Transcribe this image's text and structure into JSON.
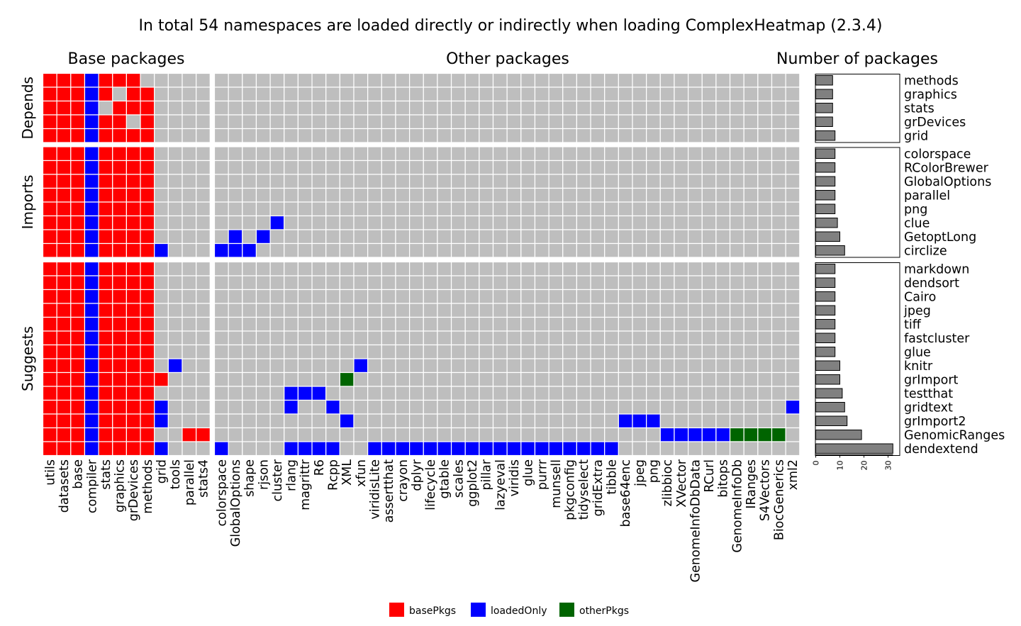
{
  "chart_data": {
    "type": "heatmap",
    "title": "In total 54 namespaces are loaded directly or indirectly when loading ComplexHeatmap (2.3.4)",
    "sections": [
      "Base packages",
      "Other packages",
      "Number of packages"
    ],
    "base_columns": [
      "utils",
      "datasets",
      "base",
      "compiler",
      "stats",
      "graphics",
      "grDevices",
      "methods",
      "grid",
      "tools",
      "parallel",
      "stats4"
    ],
    "other_columns": [
      "colorspace",
      "GlobalOptions",
      "shape",
      "rjson",
      "cluster",
      "rlang",
      "magrittr",
      "R6",
      "Rcpp",
      "XML",
      "xfun",
      "viridisLite",
      "assertthat",
      "crayon",
      "dplyr",
      "lifecycle",
      "gtable",
      "scales",
      "ggplot2",
      "pillar",
      "lazyeval",
      "viridis",
      "glue",
      "purrr",
      "munsell",
      "pkgconfig",
      "tidyselect",
      "gridExtra",
      "tibble",
      "base64enc",
      "jpeg",
      "png",
      "zlibbioc",
      "XVector",
      "GenomeInfoDbData",
      "RCurl",
      "bitops",
      "GenomeInfoDb",
      "IRanges",
      "S4Vectors",
      "BiocGenerics",
      "xml2"
    ],
    "groups": [
      {
        "name": "Depends",
        "rows": [
          "methods",
          "graphics",
          "stats",
          "grDevices",
          "grid"
        ]
      },
      {
        "name": "Imports",
        "rows": [
          "colorspace",
          "RColorBrewer",
          "GlobalOptions",
          "parallel",
          "png",
          "clue",
          "GetoptLong",
          "circlize"
        ]
      },
      {
        "name": "Suggests",
        "rows": [
          "markdown",
          "dendsort",
          "Cairo",
          "jpeg",
          "tiff",
          "fastcluster",
          "glue",
          "knitr",
          "grImport",
          "testthat",
          "gridtext",
          "grImport2",
          "GenomicRanges",
          "dendextend"
        ]
      }
    ],
    "cells": {
      "methods": {
        "basePkgs": [
          "utils",
          "datasets",
          "base",
          "stats",
          "graphics",
          "grDevices"
        ],
        "loadedOnly": [
          "compiler"
        ],
        "otherPkgs": []
      },
      "graphics": {
        "basePkgs": [
          "utils",
          "datasets",
          "base",
          "stats",
          "grDevices",
          "methods"
        ],
        "loadedOnly": [
          "compiler"
        ],
        "otherPkgs": []
      },
      "stats": {
        "basePkgs": [
          "utils",
          "datasets",
          "base",
          "graphics",
          "grDevices",
          "methods"
        ],
        "loadedOnly": [
          "compiler"
        ],
        "otherPkgs": []
      },
      "grDevices": {
        "basePkgs": [
          "utils",
          "datasets",
          "base",
          "stats",
          "graphics",
          "methods"
        ],
        "loadedOnly": [
          "compiler"
        ],
        "otherPkgs": []
      },
      "grid": {
        "basePkgs": [
          "utils",
          "datasets",
          "base",
          "stats",
          "graphics",
          "grDevices",
          "methods"
        ],
        "loadedOnly": [
          "compiler"
        ],
        "otherPkgs": []
      },
      "colorspace": {
        "basePkgs": [
          "utils",
          "datasets",
          "base",
          "stats",
          "graphics",
          "grDevices",
          "methods"
        ],
        "loadedOnly": [
          "compiler"
        ],
        "otherPkgs": []
      },
      "RColorBrewer": {
        "basePkgs": [
          "utils",
          "datasets",
          "base",
          "stats",
          "graphics",
          "grDevices",
          "methods"
        ],
        "loadedOnly": [
          "compiler"
        ],
        "otherPkgs": []
      },
      "GlobalOptions": {
        "basePkgs": [
          "utils",
          "datasets",
          "base",
          "stats",
          "graphics",
          "grDevices",
          "methods"
        ],
        "loadedOnly": [
          "compiler"
        ],
        "otherPkgs": []
      },
      "parallel": {
        "basePkgs": [
          "utils",
          "datasets",
          "base",
          "stats",
          "graphics",
          "grDevices",
          "methods"
        ],
        "loadedOnly": [
          "compiler"
        ],
        "otherPkgs": []
      },
      "png": {
        "basePkgs": [
          "utils",
          "datasets",
          "base",
          "stats",
          "graphics",
          "grDevices",
          "methods"
        ],
        "loadedOnly": [
          "compiler"
        ],
        "otherPkgs": []
      },
      "clue": {
        "basePkgs": [
          "utils",
          "datasets",
          "base",
          "stats",
          "graphics",
          "grDevices",
          "methods"
        ],
        "loadedOnly": [
          "compiler",
          "cluster"
        ],
        "otherPkgs": []
      },
      "GetoptLong": {
        "basePkgs": [
          "utils",
          "datasets",
          "base",
          "stats",
          "graphics",
          "grDevices",
          "methods"
        ],
        "loadedOnly": [
          "compiler",
          "GlobalOptions",
          "rjson"
        ],
        "otherPkgs": []
      },
      "circlize": {
        "basePkgs": [
          "utils",
          "datasets",
          "base",
          "stats",
          "graphics",
          "grDevices",
          "methods"
        ],
        "loadedOnly": [
          "compiler",
          "grid",
          "colorspace",
          "GlobalOptions",
          "shape"
        ],
        "otherPkgs": []
      },
      "markdown": {
        "basePkgs": [
          "utils",
          "datasets",
          "base",
          "stats",
          "graphics",
          "grDevices",
          "methods"
        ],
        "loadedOnly": [
          "compiler"
        ],
        "otherPkgs": []
      },
      "dendsort": {
        "basePkgs": [
          "utils",
          "datasets",
          "base",
          "stats",
          "graphics",
          "grDevices",
          "methods"
        ],
        "loadedOnly": [
          "compiler"
        ],
        "otherPkgs": []
      },
      "Cairo": {
        "basePkgs": [
          "utils",
          "datasets",
          "base",
          "stats",
          "graphics",
          "grDevices",
          "methods"
        ],
        "loadedOnly": [
          "compiler"
        ],
        "otherPkgs": []
      },
      "jpeg": {
        "basePkgs": [
          "utils",
          "datasets",
          "base",
          "stats",
          "graphics",
          "grDevices",
          "methods"
        ],
        "loadedOnly": [
          "compiler"
        ],
        "otherPkgs": []
      },
      "tiff": {
        "basePkgs": [
          "utils",
          "datasets",
          "base",
          "stats",
          "graphics",
          "grDevices",
          "methods"
        ],
        "loadedOnly": [
          "compiler"
        ],
        "otherPkgs": []
      },
      "fastcluster": {
        "basePkgs": [
          "utils",
          "datasets",
          "base",
          "stats",
          "graphics",
          "grDevices",
          "methods"
        ],
        "loadedOnly": [
          "compiler"
        ],
        "otherPkgs": []
      },
      "glue": {
        "basePkgs": [
          "utils",
          "datasets",
          "base",
          "stats",
          "graphics",
          "grDevices",
          "methods"
        ],
        "loadedOnly": [
          "compiler"
        ],
        "otherPkgs": []
      },
      "knitr": {
        "basePkgs": [
          "utils",
          "datasets",
          "base",
          "stats",
          "graphics",
          "grDevices",
          "methods"
        ],
        "loadedOnly": [
          "compiler",
          "tools",
          "xfun"
        ],
        "otherPkgs": []
      },
      "grImport": {
        "basePkgs": [
          "utils",
          "datasets",
          "base",
          "stats",
          "graphics",
          "grDevices",
          "methods",
          "grid"
        ],
        "loadedOnly": [
          "compiler"
        ],
        "otherPkgs": [
          "XML"
        ]
      },
      "testthat": {
        "basePkgs": [
          "utils",
          "datasets",
          "base",
          "stats",
          "graphics",
          "grDevices",
          "methods"
        ],
        "loadedOnly": [
          "compiler",
          "rlang",
          "magrittr",
          "R6"
        ],
        "otherPkgs": []
      },
      "gridtext": {
        "basePkgs": [
          "utils",
          "datasets",
          "base",
          "stats",
          "graphics",
          "grDevices",
          "methods"
        ],
        "loadedOnly": [
          "compiler",
          "grid",
          "rlang",
          "Rcpp",
          "xml2"
        ],
        "otherPkgs": []
      },
      "grImport2": {
        "basePkgs": [
          "utils",
          "datasets",
          "base",
          "stats",
          "graphics",
          "grDevices",
          "methods"
        ],
        "loadedOnly": [
          "compiler",
          "grid",
          "XML",
          "base64enc",
          "jpeg",
          "png"
        ],
        "otherPkgs": []
      },
      "GenomicRanges": {
        "basePkgs": [
          "utils",
          "datasets",
          "base",
          "stats",
          "graphics",
          "grDevices",
          "methods",
          "parallel",
          "stats4"
        ],
        "loadedOnly": [
          "compiler",
          "zlibbioc",
          "XVector",
          "GenomeInfoDbData",
          "RCurl",
          "bitops"
        ],
        "otherPkgs": [
          "GenomeInfoDb",
          "IRanges",
          "S4Vectors",
          "BiocGenerics"
        ]
      },
      "dendextend": {
        "basePkgs": [
          "utils",
          "datasets",
          "base",
          "stats",
          "graphics",
          "grDevices",
          "methods"
        ],
        "loadedOnly": [
          "compiler",
          "grid",
          "colorspace",
          "rlang",
          "magrittr",
          "R6",
          "Rcpp",
          "viridisLite",
          "assertthat",
          "crayon",
          "dplyr",
          "lifecycle",
          "gtable",
          "scales",
          "ggplot2",
          "pillar",
          "lazyeval",
          "viridis",
          "glue",
          "purrr",
          "munsell",
          "pkgconfig",
          "tidyselect",
          "gridExtra",
          "tibble"
        ],
        "otherPkgs": []
      }
    },
    "bars": {
      "methods": 7,
      "graphics": 7,
      "stats": 7,
      "grDevices": 7,
      "grid": 8,
      "colorspace": 8,
      "RColorBrewer": 8,
      "GlobalOptions": 8,
      "parallel": 8,
      "png": 8,
      "clue": 9,
      "GetoptLong": 10,
      "circlize": 12,
      "markdown": 8,
      "dendsort": 8,
      "Cairo": 8,
      "jpeg": 8,
      "tiff": 8,
      "fastcluster": 8,
      "glue": 8,
      "knitr": 10,
      "grImport": 10,
      "testthat": 11,
      "gridtext": 12,
      "grImport2": 13,
      "GenomicRanges": 19,
      "dendextend": 32
    },
    "bar_axis": {
      "ticks": [
        0,
        10,
        20,
        30
      ],
      "xlim": [
        0,
        33
      ]
    },
    "legend": [
      {
        "label": "basePkgs",
        "color": "#ff0000"
      },
      {
        "label": "loadedOnly",
        "color": "#0000ff"
      },
      {
        "label": "otherPkgs",
        "color": "#006400"
      }
    ],
    "empty_color": "#bebebe",
    "bar_color": "#808080",
    "legend_position": "bottom"
  }
}
